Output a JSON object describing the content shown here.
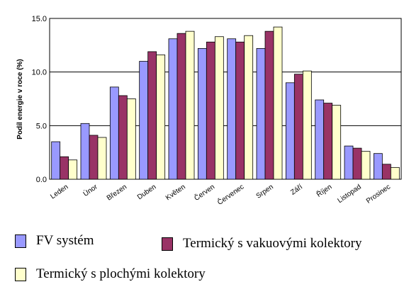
{
  "chart_data": {
    "type": "bar",
    "ylabel": "Podíl energie v roce (%)",
    "ylim": [
      0,
      15
    ],
    "yticks": [
      "0.0",
      "5.0",
      "10.0",
      "15.0"
    ],
    "ytick_values": [
      0,
      5,
      10,
      15
    ],
    "categories": [
      "Leden",
      "Únor",
      "Březen",
      "Duben",
      "Květen",
      "Červen",
      "Červenec",
      "Srpen",
      "Září",
      "Říjen",
      "Listopad",
      "Prosinec"
    ],
    "series": [
      {
        "name": "FV systém",
        "color": "#9999ff",
        "values": [
          3.5,
          5.2,
          8.6,
          11.0,
          13.1,
          12.2,
          13.1,
          12.2,
          9.0,
          7.4,
          3.1,
          2.4
        ]
      },
      {
        "name": "Termický s vakuovými kolektory",
        "color": "#993366",
        "values": [
          2.1,
          4.1,
          7.8,
          11.9,
          13.6,
          12.8,
          12.8,
          13.8,
          9.8,
          7.1,
          2.9,
          1.4
        ]
      },
      {
        "name": "Termický s plochými kolektory",
        "color": "#ffffcc",
        "values": [
          1.8,
          3.9,
          7.5,
          11.6,
          13.8,
          13.3,
          13.4,
          14.2,
          10.1,
          6.9,
          2.6,
          1.1
        ]
      }
    ],
    "grid": true,
    "legend": "bottom"
  }
}
